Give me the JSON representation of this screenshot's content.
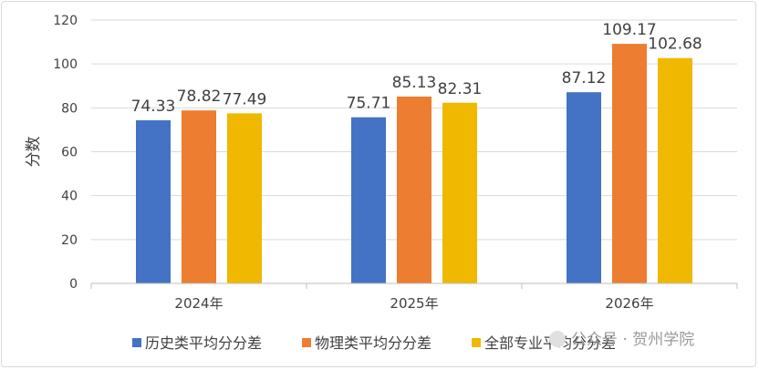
{
  "chart_data": {
    "type": "bar",
    "categories": [
      "2024年",
      "2025年",
      "2026年"
    ],
    "series": [
      {
        "name": "历史类平均分分差",
        "color": "#4472C4",
        "values": [
          74.33,
          75.71,
          87.12
        ]
      },
      {
        "name": "物理类平均分分差",
        "color": "#ED7D31",
        "values": [
          78.82,
          85.13,
          109.17
        ]
      },
      {
        "name": "全部专业平均分分差",
        "color": "#F0B800",
        "values": [
          77.49,
          82.31,
          102.68
        ]
      }
    ],
    "title": "",
    "xlabel": "",
    "ylabel": "分数",
    "ylim": [
      0,
      120
    ],
    "yticks": [
      0,
      20,
      40,
      60,
      80,
      100,
      120
    ],
    "grid": true,
    "legend": "bottom",
    "data_labels": true
  },
  "watermark": {
    "text": "公众号 · 贺州学院"
  }
}
